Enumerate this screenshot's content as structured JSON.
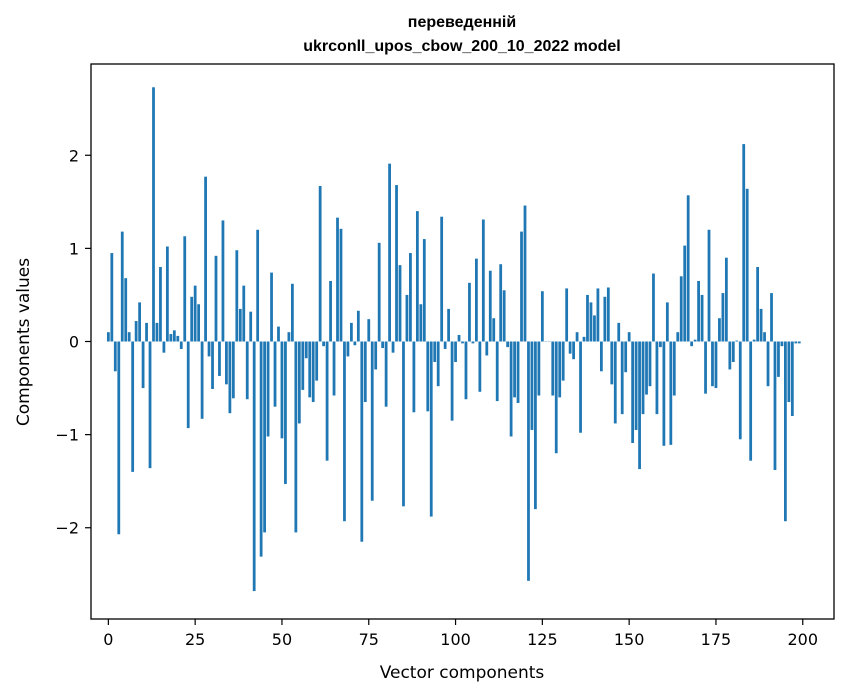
{
  "chart_data": {
    "type": "bar",
    "title_line1": "переведенній",
    "title_line2": "ukrconll_upos_cbow_200_10_2022 model",
    "xlabel": "Vector components",
    "ylabel": "Components values",
    "xlim": [
      -5,
      209
    ],
    "ylim": [
      -2.98,
      2.98
    ],
    "xticks": [
      0,
      25,
      50,
      75,
      100,
      125,
      150,
      175,
      200
    ],
    "yticks": [
      -2,
      -1,
      0,
      1,
      2
    ],
    "ytick_labels": [
      "−2",
      "−1",
      "0",
      "1",
      "2"
    ],
    "bar_color": "#1f77b4",
    "grid": false,
    "values": [
      0.1,
      0.95,
      -0.32,
      -2.07,
      1.18,
      0.68,
      0.1,
      -1.4,
      0.22,
      0.42,
      -0.5,
      0.2,
      -1.36,
      2.73,
      0.2,
      0.8,
      -0.12,
      1.02,
      0.08,
      0.12,
      0.06,
      -0.08,
      1.13,
      -0.93,
      0.48,
      0.6,
      0.4,
      -0.83,
      1.77,
      -0.16,
      -0.51,
      0.92,
      -0.37,
      1.3,
      -0.46,
      -0.77,
      -0.61,
      0.98,
      0.35,
      0.6,
      -0.62,
      0.32,
      -2.68,
      1.2,
      -2.31,
      -2.05,
      -1.02,
      0.74,
      -0.7,
      0.16,
      -1.04,
      -1.53,
      0.1,
      0.62,
      -2.05,
      -0.88,
      -0.52,
      -0.18,
      -0.6,
      -0.65,
      -0.42,
      1.67,
      -0.05,
      -1.28,
      0.65,
      -0.58,
      1.33,
      1.21,
      -1.93,
      -0.16,
      0.2,
      -0.04,
      0.33,
      -2.15,
      -0.65,
      0.24,
      -1.71,
      -0.3,
      1.06,
      -0.07,
      -0.7,
      1.91,
      -0.12,
      1.68,
      0.82,
      -1.77,
      0.5,
      0.95,
      -0.76,
      1.4,
      0.4,
      1.1,
      -0.75,
      -1.88,
      -0.22,
      -0.48,
      1.34,
      -0.08,
      0.35,
      -0.85,
      -0.22,
      0.07,
      -0.02,
      -0.62,
      0.63,
      -0.02,
      0.89,
      -0.54,
      1.31,
      -0.15,
      0.76,
      0.25,
      -0.64,
      0.83,
      0.55,
      -0.06,
      -1.02,
      -0.6,
      -0.66,
      1.18,
      1.46,
      -2.57,
      -0.95,
      -1.8,
      -0.58,
      0.54,
      0.0,
      0.0,
      -0.58,
      -1.2,
      -0.6,
      -0.42,
      0.57,
      -0.13,
      -0.19,
      0.1,
      -0.98,
      0.05,
      0.5,
      0.42,
      0.28,
      0.57,
      -0.32,
      0.48,
      0.58,
      -0.46,
      -0.88,
      0.2,
      -0.78,
      -0.33,
      0.1,
      -1.09,
      -0.95,
      -1.37,
      -0.78,
      -0.57,
      -0.48,
      0.73,
      -0.78,
      -0.06,
      -1.12,
      0.42,
      -1.11,
      -0.58,
      0.1,
      0.7,
      1.03,
      1.57,
      -0.05,
      0.02,
      0.65,
      0.5,
      -0.56,
      1.2,
      -0.48,
      -0.5,
      0.25,
      0.52,
      0.9,
      -0.3,
      -0.22,
      0.01,
      -1.05,
      2.12,
      1.64,
      -1.28,
      0.02,
      0.8,
      0.35,
      0.1,
      -0.48,
      0.52,
      -1.38,
      -0.38,
      -0.05,
      -1.93,
      -0.65,
      -0.8,
      -0.02,
      -0.02
    ]
  }
}
